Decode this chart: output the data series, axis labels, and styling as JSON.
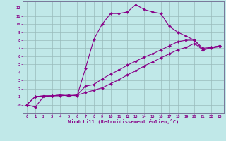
{
  "background_color": "#c0e8e8",
  "grid_color": "#99bbbb",
  "line_color": "#880088",
  "xlabel": "Windchill (Refroidissement éolien,°C)",
  "xlim": [
    -0.5,
    23.5
  ],
  "ylim": [
    -1.0,
    12.8
  ],
  "line1_x": [
    0,
    1,
    2,
    3,
    4,
    5,
    6,
    7,
    8,
    9,
    10,
    11,
    12,
    13,
    14,
    15,
    16,
    17,
    18,
    19,
    20,
    21,
    22,
    23
  ],
  "line1_y": [
    0,
    -0.3,
    1.0,
    1.1,
    1.1,
    1.2,
    1.1,
    4.5,
    8.1,
    10.0,
    11.3,
    11.3,
    11.5,
    12.4,
    11.8,
    11.5,
    11.3,
    9.7,
    9.0,
    8.5,
    8.0,
    6.8,
    7.0,
    7.2
  ],
  "line2_x": [
    0,
    1,
    2,
    3,
    4,
    5,
    6,
    7,
    8,
    9,
    10,
    11,
    12,
    13,
    14,
    15,
    16,
    17,
    18,
    19,
    20,
    21,
    22,
    23
  ],
  "line2_y": [
    0,
    1.0,
    1.1,
    1.1,
    1.2,
    1.1,
    1.2,
    2.3,
    2.5,
    3.2,
    3.8,
    4.3,
    4.9,
    5.4,
    5.9,
    6.3,
    6.8,
    7.3,
    7.8,
    8.0,
    8.0,
    7.0,
    7.1,
    7.3
  ],
  "line3_x": [
    0,
    1,
    2,
    3,
    4,
    5,
    6,
    7,
    8,
    9,
    10,
    11,
    12,
    13,
    14,
    15,
    16,
    17,
    18,
    19,
    20,
    21,
    22,
    23
  ],
  "line3_y": [
    0,
    1.0,
    1.1,
    1.1,
    1.2,
    1.1,
    1.2,
    1.5,
    1.8,
    2.1,
    2.6,
    3.1,
    3.7,
    4.2,
    4.8,
    5.3,
    5.8,
    6.3,
    6.8,
    7.1,
    7.6,
    6.8,
    7.1,
    7.3
  ]
}
